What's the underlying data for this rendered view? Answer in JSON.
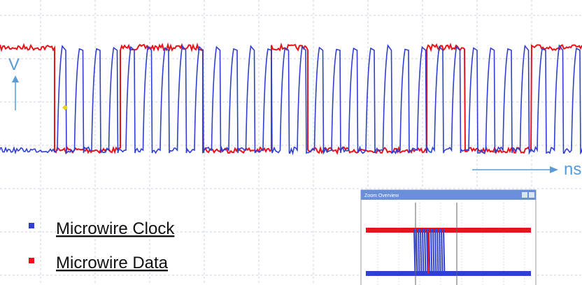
{
  "axis_labels": {
    "y": "V",
    "x": "ns"
  },
  "legend": [
    {
      "label": "Microwire Clock",
      "color": "#2e3fd1"
    },
    {
      "label": "Microwire Data",
      "color": "#e8141b"
    }
  ],
  "inset": {
    "title": "Zoom Overview"
  }
}
